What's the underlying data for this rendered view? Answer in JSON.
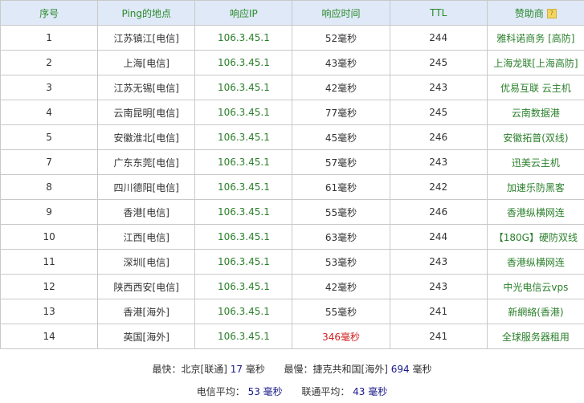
{
  "headers": [
    "序号",
    "Ping的地点",
    "响应IP",
    "响应时间",
    "TTL",
    "赞助商"
  ],
  "rows": [
    [
      "1",
      "江苏镇江[电信]",
      "106.3.45.1",
      "52毫秒",
      "244",
      "雅科诺商务 [高防]"
    ],
    [
      "2",
      "上海[电信]",
      "106.3.45.1",
      "43毫秒",
      "245",
      "上海龙联[上海高防]"
    ],
    [
      "3",
      "江苏无锡[电信]",
      "106.3.45.1",
      "42毫秒",
      "243",
      "优易互联 云主机"
    ],
    [
      "4",
      "云南昆明[电信]",
      "106.3.45.1",
      "77毫秒",
      "245",
      "云南数据港"
    ],
    [
      "5",
      "安徽淮北[电信]",
      "106.3.45.1",
      "45毫秒",
      "246",
      "安徽拓普(双线)"
    ],
    [
      "7",
      "广东东莞[电信]",
      "106.3.45.1",
      "57毫秒",
      "243",
      "迅美云主机"
    ],
    [
      "8",
      "四川德阳[电信]",
      "106.3.45.1",
      "61毫秒",
      "242",
      "加速乐防黑客"
    ],
    [
      "9",
      "香港[电信]",
      "106.3.45.1",
      "55毫秒",
      "246",
      "香港纵横网连"
    ],
    [
      "10",
      "江西[电信]",
      "106.3.45.1",
      "63毫秒",
      "244",
      "【180G】硬防双线"
    ],
    [
      "11",
      "深圳[电信]",
      "106.3.45.1",
      "53毫秒",
      "243",
      "香港纵横网连"
    ],
    [
      "12",
      "陕西西安[电信]",
      "106.3.45.1",
      "42毫秒",
      "243",
      "中光电信云vps"
    ],
    [
      "13",
      "香港[海外]",
      "106.3.45.1",
      "55毫秒",
      "241",
      "新網絡(香港)"
    ],
    [
      "14",
      "英国[海外]",
      "106.3.45.1",
      "346毫秒",
      "241",
      "全球服务器租用"
    ]
  ],
  "slow_color": "#d02020",
  "help_icon": "question-icon",
  "summary": {
    "fastest_label": "最快：北京[联通]",
    "fastest_value": "17",
    "fastest_unit": "毫秒",
    "slowest_label": "最慢：捷克共和国[海外]",
    "slowest_value": "694",
    "slowest_unit": "毫秒",
    "telecom_label": "电信平均：",
    "telecom_value": "53 毫秒",
    "unicom_label": "联通平均：",
    "unicom_value": "43 毫秒"
  }
}
